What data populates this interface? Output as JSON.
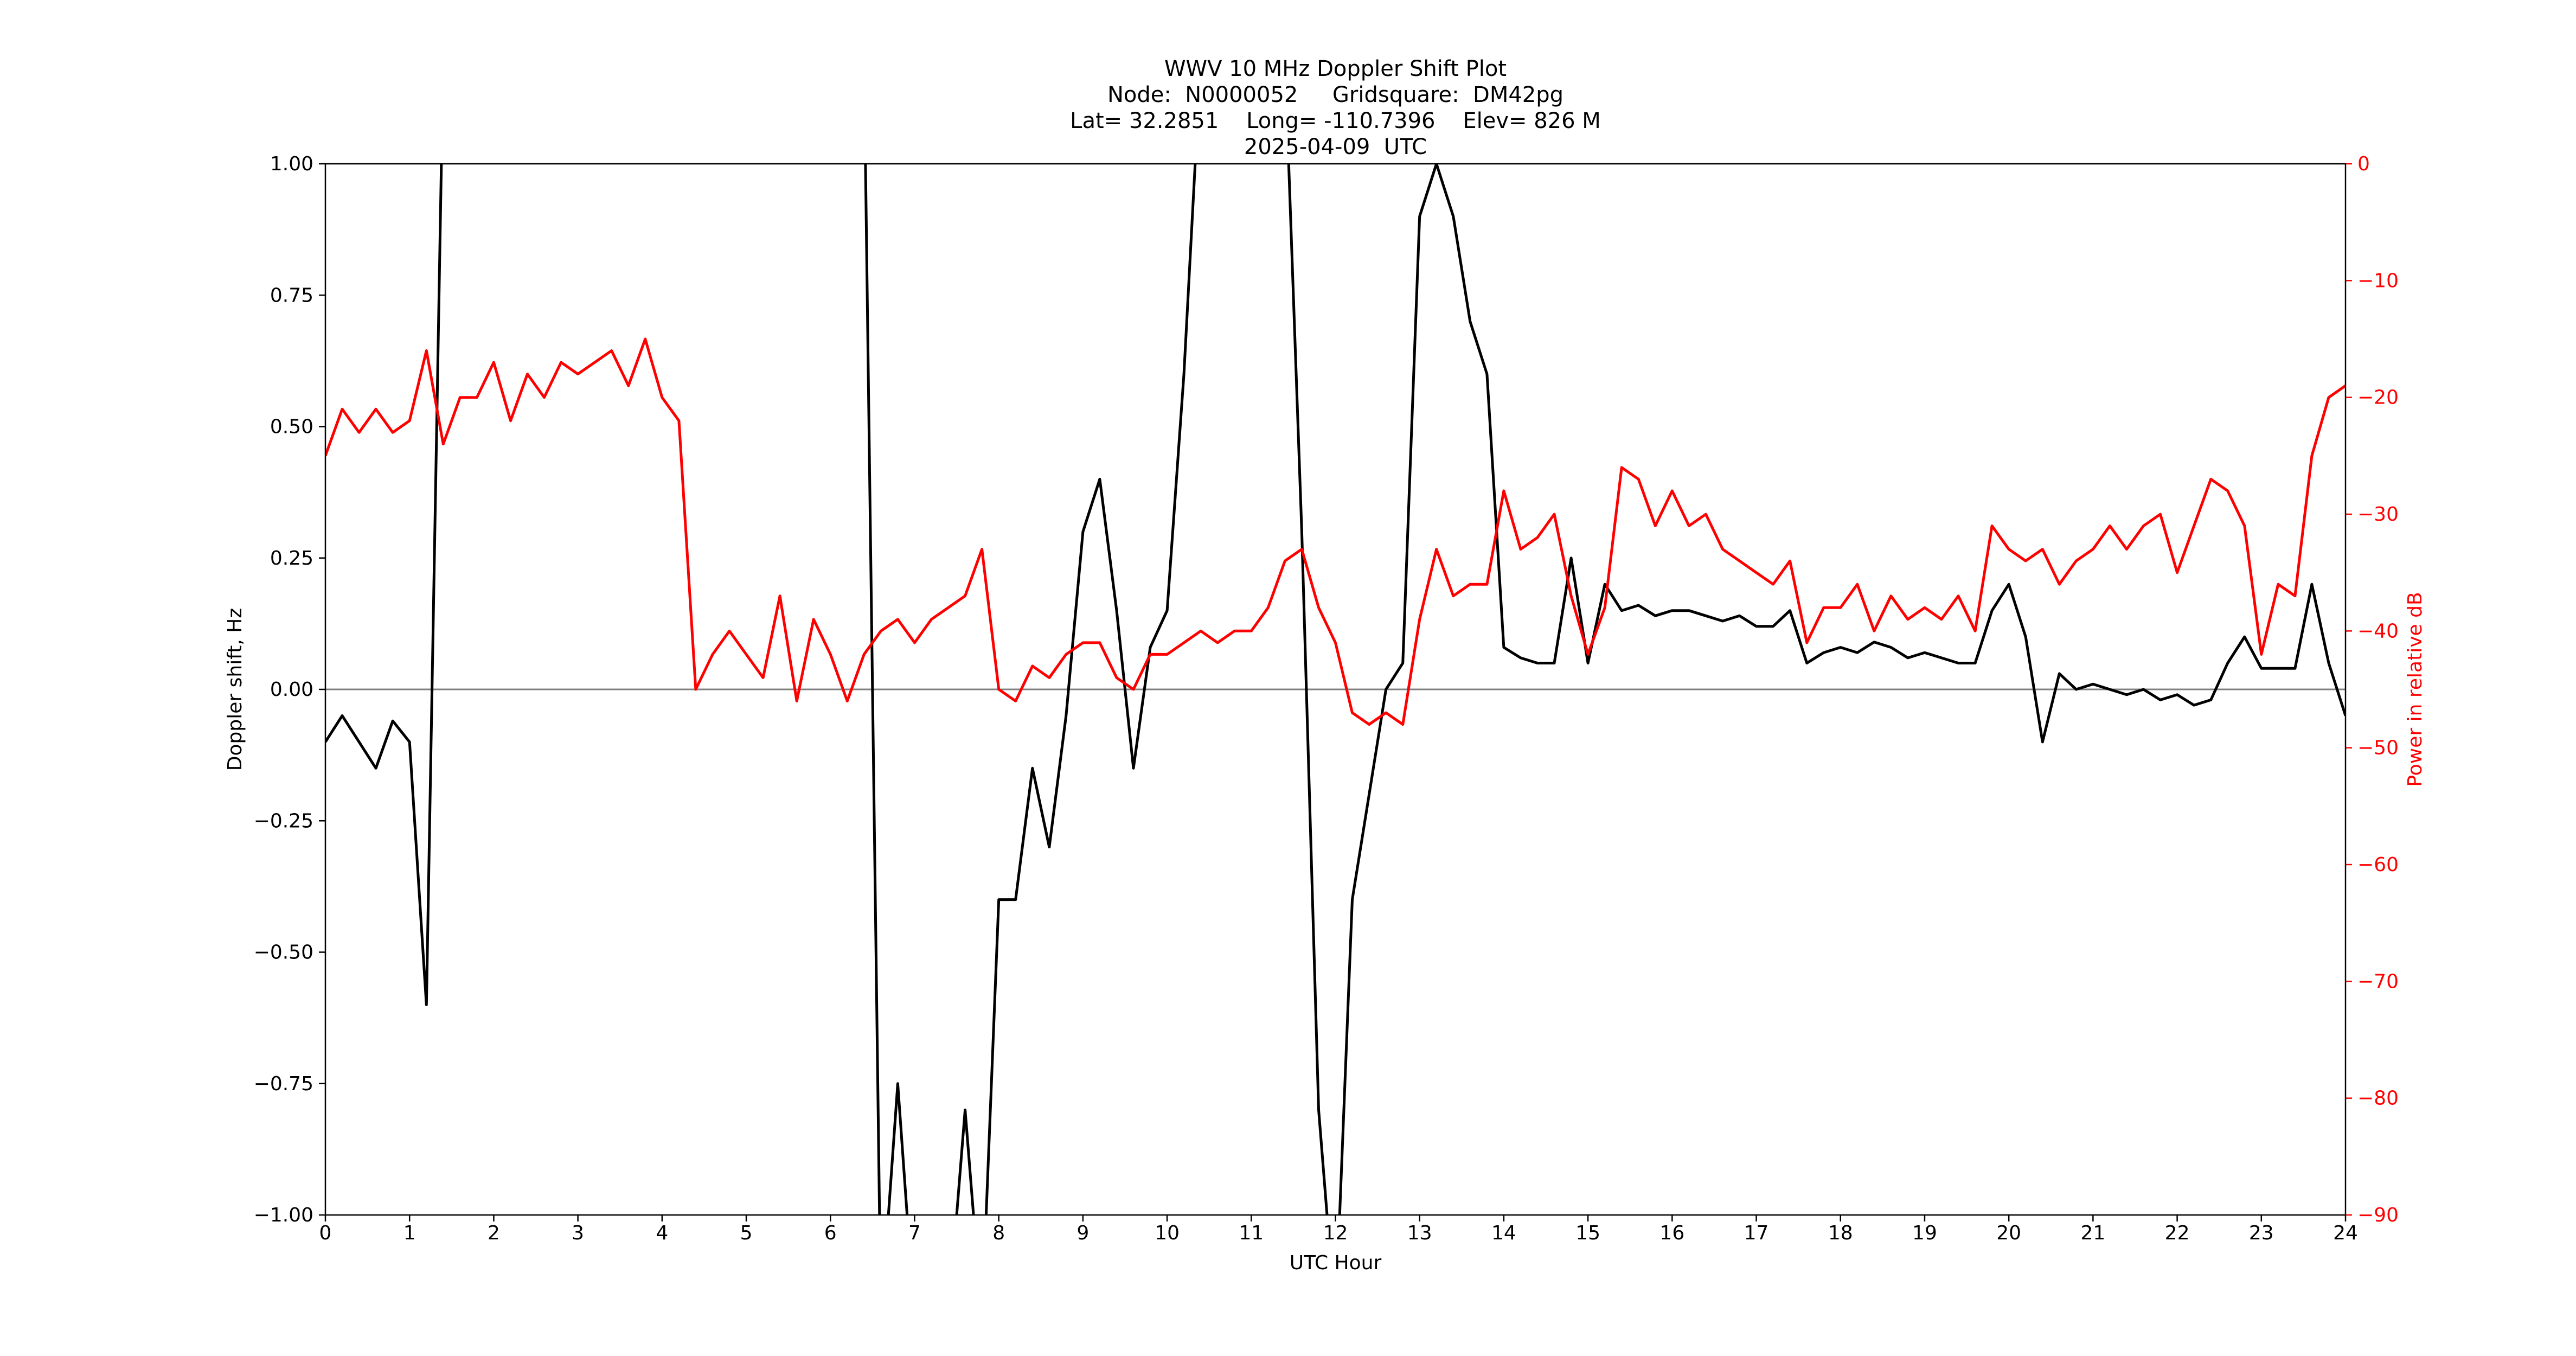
{
  "chart_data": {
    "type": "line",
    "title": [
      "WWV 10 MHz Doppler Shift Plot",
      "Node:  N0000052     Gridsquare:  DM42pg",
      "Lat= 32.2851    Long= -110.7396    Elev= 826 M",
      "2025-04-09  UTC"
    ],
    "xlabel": "UTC Hour",
    "ylabel": "Doppler shift, Hz",
    "y2label": "Power in relative dB",
    "xlim": [
      0,
      24
    ],
    "xticks": [
      0,
      1,
      2,
      3,
      4,
      5,
      6,
      7,
      8,
      9,
      10,
      11,
      12,
      13,
      14,
      15,
      16,
      17,
      18,
      19,
      20,
      21,
      22,
      23,
      24
    ],
    "ylim": [
      -1,
      1
    ],
    "yticks": [
      {
        "value": -1,
        "label": "−1.00"
      },
      {
        "value": -0.75,
        "label": "−0.75"
      },
      {
        "value": -0.5,
        "label": "−0.50"
      },
      {
        "value": -0.25,
        "label": "−0.25"
      },
      {
        "value": 0,
        "label": "0.00"
      },
      {
        "value": 0.25,
        "label": "0.25"
      },
      {
        "value": 0.5,
        "label": "0.50"
      },
      {
        "value": 0.75,
        "label": "0.75"
      },
      {
        "value": 1,
        "label": "1.00"
      }
    ],
    "y2lim": [
      -90,
      0
    ],
    "y2ticks": [
      {
        "value": -90,
        "label": "−90"
      },
      {
        "value": -80,
        "label": "−80"
      },
      {
        "value": -70,
        "label": "−70"
      },
      {
        "value": -60,
        "label": "−60"
      },
      {
        "value": -50,
        "label": "−50"
      },
      {
        "value": -40,
        "label": "−40"
      },
      {
        "value": -30,
        "label": "−30"
      },
      {
        "value": -20,
        "label": "−20"
      },
      {
        "value": -10,
        "label": "−10"
      },
      0
    ],
    "zero_line": true,
    "x": [
      0,
      0.2,
      0.4,
      0.6,
      0.8,
      1,
      1.2,
      1.4,
      1.6,
      1.8,
      2,
      2.2,
      2.4,
      2.6,
      2.8,
      3,
      3.2,
      3.4,
      3.6,
      3.8,
      4,
      4.2,
      4.4,
      4.6,
      4.8,
      5,
      5.2,
      5.4,
      5.6,
      5.8,
      6,
      6.2,
      6.4,
      6.6,
      6.8,
      7,
      7.2,
      7.4,
      7.6,
      7.8,
      8,
      8.2,
      8.4,
      8.6,
      8.8,
      9,
      9.2,
      9.4,
      9.6,
      9.8,
      10,
      10.2,
      10.4,
      10.6,
      10.8,
      11,
      11.2,
      11.4,
      11.6,
      11.8,
      12,
      12.2,
      12.4,
      12.6,
      12.8,
      13,
      13.2,
      13.4,
      13.6,
      13.8,
      14,
      14.2,
      14.4,
      14.6,
      14.8,
      15,
      15.2,
      15.4,
      15.6,
      15.8,
      16,
      16.2,
      16.4,
      16.6,
      16.8,
      17,
      17.2,
      17.4,
      17.6,
      17.8,
      18,
      18.2,
      18.4,
      18.6,
      18.8,
      19,
      19.2,
      19.4,
      19.6,
      19.8,
      20,
      20.2,
      20.4,
      20.6,
      20.8,
      21,
      21.2,
      21.4,
      21.6,
      21.8,
      22,
      22.2,
      22.4,
      22.6,
      22.8,
      23,
      23.2,
      23.4,
      23.6,
      23.8,
      24
    ],
    "series": [
      {
        "color": "#000000",
        "values": [
          -0.1,
          -0.05,
          -0.1,
          -0.15,
          -0.06,
          -0.1,
          -0.6,
          1.2,
          1.2,
          1.2,
          1.2,
          1.2,
          1.2,
          1.2,
          1.2,
          1.2,
          1.2,
          1.2,
          1.2,
          1.2,
          1.2,
          1.2,
          1.2,
          1.2,
          1.2,
          1.2,
          1.2,
          1.2,
          1.2,
          1.2,
          1.2,
          1.2,
          1.2,
          -1.2,
          -0.75,
          -1.2,
          -1.2,
          -1.2,
          -0.8,
          -1.2,
          -0.4,
          -0.4,
          -0.15,
          -0.3,
          -0.05,
          0.3,
          0.4,
          0.15,
          -0.15,
          0.08,
          0.15,
          0.6,
          1.2,
          1.2,
          1.2,
          1.2,
          1.2,
          1.2,
          0.3,
          -0.8,
          -1.2,
          -0.4,
          -0.2,
          0.0,
          0.05,
          0.9,
          1.0,
          0.9,
          0.7,
          0.6,
          0.08,
          0.06,
          0.05,
          0.05,
          0.25,
          0.05,
          0.2,
          0.15,
          0.16,
          0.14,
          0.15,
          0.15,
          0.14,
          0.13,
          0.14,
          0.12,
          0.12,
          0.15,
          0.05,
          0.07,
          0.08,
          0.07,
          0.09,
          0.08,
          0.06,
          0.07,
          0.06,
          0.05,
          0.05,
          0.15,
          0.2,
          0.1,
          -0.1,
          0.03,
          0.0,
          0.01,
          0.0,
          -0.01,
          0.0,
          -0.02,
          -0.01,
          -0.03,
          -0.02,
          0.05,
          0.1,
          0.04,
          0.04,
          0.04,
          0.2,
          0.05,
          -0.05
        ]
      },
      {
        "color": "#ff0000",
        "axis": "y2",
        "values": [
          -25,
          -21,
          -23,
          -21,
          -23,
          -22,
          -16,
          -24,
          -20,
          -20,
          -17,
          -22,
          -18,
          -20,
          -17,
          -18,
          -17,
          -16,
          -19,
          -15,
          -20,
          -22,
          -45,
          -42,
          -40,
          -42,
          -44,
          -37,
          -46,
          -39,
          -42,
          -46,
          -42,
          -40,
          -39,
          -41,
          -39,
          -38,
          -37,
          -33,
          -45,
          -46,
          -43,
          -44,
          -42,
          -41,
          -41,
          -44,
          -45,
          -42,
          -42,
          -41,
          -40,
          -41,
          -40,
          -40,
          -38,
          -34,
          -33,
          -38,
          -41,
          -47,
          -48,
          -47,
          -48,
          -39,
          -33,
          -37,
          -36,
          -36,
          -28,
          -33,
          -32,
          -30,
          -37,
          -42,
          -38,
          -26,
          -27,
          -31,
          -28,
          -31,
          -30,
          -33,
          -34,
          -35,
          -36,
          -34,
          -41,
          -38,
          -38,
          -36,
          -40,
          -37,
          -39,
          -38,
          -39,
          -37,
          -40,
          -31,
          -33,
          -34,
          -33,
          -36,
          -34,
          -33,
          -31,
          -33,
          -31,
          -30,
          -35,
          -31,
          -27,
          -28,
          -31,
          -42,
          -36,
          -37,
          -25,
          -20,
          -19
        ]
      }
    ]
  }
}
